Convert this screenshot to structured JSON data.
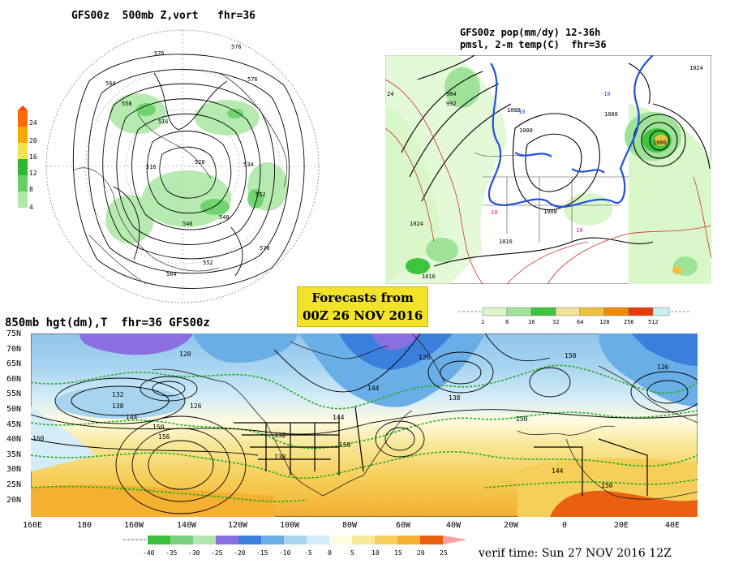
{
  "panels": {
    "polar": {
      "title": "GFS00z  500mb Z,vort   fhr=36",
      "contour_labels": [
        "576",
        "576",
        "564",
        "558",
        "516",
        "516",
        "528",
        "534",
        "552",
        "570",
        "552",
        "564",
        "546",
        "540",
        "576"
      ],
      "colorbar": {
        "ticks": [
          "24",
          "20",
          "16",
          "12",
          "8",
          "4"
        ],
        "colors": [
          "#ff6a00",
          "#f7a900",
          "#f6e24a",
          "#2fb82f",
          "#63d063",
          "#b0e8a8"
        ]
      }
    },
    "precip": {
      "title_line1": "GFS00z pop(mm/dy) 12-36h",
      "title_line2": "pmsl, 2-m temp(C)  fhr=36",
      "contour_labels": [
        "1024",
        "1008",
        "1000",
        "1008",
        "1016",
        "1024",
        "1016",
        "1000",
        "-10",
        "-10",
        "10",
        "10",
        "24",
        "992",
        "984",
        "1008"
      ],
      "colorbar": {
        "ticks": [
          "1",
          "8",
          "16",
          "32",
          "64",
          "128",
          "256",
          "512"
        ],
        "colors": [
          "#d9f7c8",
          "#9fe39a",
          "#3fc43f",
          "#f4e29a",
          "#f0c040",
          "#f08a00",
          "#e83a00",
          "#c8f0f0"
        ]
      }
    },
    "forecast_box": {
      "line1": "Forecasts from",
      "line2": "00Z 26 NOV 2016"
    },
    "lower": {
      "title": "850mb hgt(dm),T  fhr=36 GFS00z",
      "lat_labels": [
        "75N",
        "70N",
        "65N",
        "60N",
        "55N",
        "50N",
        "45N",
        "40N",
        "35N",
        "30N",
        "25N",
        "20N"
      ],
      "lon_labels": [
        "160E",
        "180",
        "160W",
        "140W",
        "120W",
        "100W",
        "80W",
        "60W",
        "40W",
        "20W",
        "0",
        "20E",
        "40E"
      ],
      "height_labels": [
        "120",
        "132",
        "138",
        "126",
        "144",
        "150",
        "156",
        "144",
        "132",
        "138",
        "150",
        "144",
        "126",
        "138",
        "150",
        "144",
        "150",
        "150",
        "126",
        "160"
      ],
      "colorbar": {
        "ticks": [
          "-40",
          "-35",
          "-30",
          "-25",
          "-20",
          "-15",
          "-10",
          "-5",
          "0",
          "5",
          "10",
          "15",
          "20",
          "25"
        ],
        "colors": [
          "#3cc03c",
          "#7ad07a",
          "#b6e6b0",
          "#8a6fe0",
          "#3a7fdc",
          "#6aaee8",
          "#a8d4f0",
          "#d4ecf8",
          "#fffbe0",
          "#f8e89a",
          "#f6cf5a",
          "#f4b030",
          "#e86010",
          "#f9a0a0"
        ]
      },
      "verif_text": "verif time: Sun 27 NOV 2016 12Z"
    }
  }
}
